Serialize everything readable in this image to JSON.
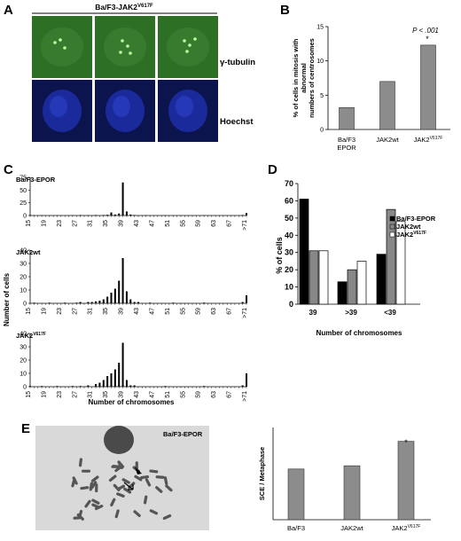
{
  "panels": {
    "A": {
      "letter": "A",
      "header_base": "Ba/F3-JAK2",
      "header_sup": "V617F",
      "row1_label": "γ-tubulin",
      "row2_label": "Hoechst",
      "colors": {
        "green_bg": "#2e6f26",
        "blue_bg": "#1a2a9a",
        "dot": "#b6ff9a"
      }
    },
    "B": {
      "letter": "B",
      "annotation_p": "P < .001",
      "annotation_star": "*",
      "cat1_line1": "Ba/F3",
      "cat1_line2": "EPOR",
      "cat2": "JAK2wt",
      "cat3_base": "JAK2",
      "cat3_sup": "V617F"
    },
    "C": {
      "letter": "C",
      "ylabel": "Number of cells",
      "xlabel": "Number of chromosomes",
      "sub1": "Ba/F3-EPOR",
      "sub2": "JAK2wt",
      "sub3_base": "JAK2",
      "sub3_sup": "V617F"
    },
    "D": {
      "letter": "D",
      "ylabel": "% of cells",
      "xlabel": "Number of chromosomes",
      "legend1": "Ba/F3-EPOR",
      "legend2": "JAK2wt",
      "legend3_base": "JAK2",
      "legend3_sup": "V617F"
    },
    "E": {
      "letter": "E",
      "micrograph_label": "Ba/F3-EPOR",
      "ylabel": "SCE / Metaphase",
      "annotation_star": "*",
      "cat1": "Ba/F3",
      "cat2": "JAK2wt",
      "cat3_base": "JAK2",
      "cat3_sup": "V617F"
    }
  },
  "chart_data": [
    {
      "panel": "B",
      "type": "bar",
      "ylabel": "% of cells in mitosis with abnormal numbers of centrosomes",
      "ylabel_lines": [
        "% of cells in mitosis with",
        "abnormal",
        "numbers of centrosomes"
      ],
      "categories": [
        "Ba/F3 EPOR",
        "JAK2wt",
        "JAK2V617F"
      ],
      "values": [
        3.2,
        7,
        12.3
      ],
      "ylim": [
        0,
        15
      ],
      "yticks": [
        0,
        5,
        10,
        15
      ],
      "color": "#8c8c8c"
    },
    {
      "panel": "C",
      "type": "bar",
      "xlim": [
        15,
        71
      ],
      "xticks": [
        "15",
        "19",
        "23",
        "27",
        "31",
        "35",
        "39",
        "43",
        "47",
        "51",
        "55",
        "59",
        "63",
        "67",
        ">71"
      ],
      "series": [
        {
          "name": "Ba/F3-EPOR",
          "ylim": [
            0,
            75
          ],
          "yticks": [
            0,
            25,
            50,
            75
          ],
          "points": [
            [
              15,
              1
            ],
            [
              16,
              0.5
            ],
            [
              18,
              0.5
            ],
            [
              22,
              0.5
            ],
            [
              26,
              0.5
            ],
            [
              28,
              1
            ],
            [
              30,
              0.5
            ],
            [
              32,
              1
            ],
            [
              34,
              1
            ],
            [
              35,
              1.5
            ],
            [
              36,
              6
            ],
            [
              37,
              2
            ],
            [
              38,
              4
            ],
            [
              39,
              65
            ],
            [
              40,
              8
            ],
            [
              41,
              2
            ],
            [
              42,
              1
            ],
            [
              45,
              0.5
            ],
            [
              50,
              0.5
            ],
            [
              60,
              0.5
            ],
            [
              70,
              1
            ],
            [
              71,
              5
            ]
          ]
        },
        {
          "name": "JAK2wt",
          "ylim": [
            0,
            40
          ],
          "yticks": [
            0,
            10,
            20,
            30,
            40
          ],
          "points": [
            [
              16,
              0.5
            ],
            [
              20,
              0.5
            ],
            [
              24,
              0.5
            ],
            [
              27,
              0.5
            ],
            [
              28,
              1
            ],
            [
              30,
              1
            ],
            [
              31,
              1
            ],
            [
              32,
              1.5
            ],
            [
              33,
              2
            ],
            [
              34,
              3
            ],
            [
              35,
              5
            ],
            [
              36,
              8
            ],
            [
              37,
              11
            ],
            [
              38,
              17
            ],
            [
              39,
              34
            ],
            [
              40,
              9
            ],
            [
              41,
              3
            ],
            [
              42,
              1
            ],
            [
              43,
              1
            ],
            [
              46,
              0.5
            ],
            [
              52,
              0.5
            ],
            [
              60,
              0.5
            ],
            [
              70,
              1
            ],
            [
              71,
              6
            ]
          ]
        },
        {
          "name": "JAK2V617F",
          "ylim": [
            0,
            40
          ],
          "yticks": [
            0,
            10,
            20,
            30,
            40
          ],
          "points": [
            [
              15,
              0.5
            ],
            [
              18,
              0.5
            ],
            [
              22,
              0.5
            ],
            [
              26,
              0.5
            ],
            [
              28,
              0.5
            ],
            [
              30,
              1
            ],
            [
              32,
              2
            ],
            [
              33,
              3
            ],
            [
              34,
              5
            ],
            [
              35,
              8
            ],
            [
              36,
              10
            ],
            [
              37,
              13
            ],
            [
              38,
              18
            ],
            [
              39,
              33
            ],
            [
              40,
              5
            ],
            [
              41,
              1
            ],
            [
              42,
              1
            ],
            [
              50,
              0.5
            ],
            [
              60,
              0.5
            ],
            [
              70,
              1
            ],
            [
              71,
              10
            ]
          ]
        }
      ]
    },
    {
      "panel": "D",
      "type": "bar",
      "categories": [
        "39",
        ">39",
        "<39"
      ],
      "series": [
        {
          "name": "Ba/F3-EPOR",
          "values": [
            61,
            13,
            29
          ],
          "color": "#000000"
        },
        {
          "name": "JAK2wt",
          "values": [
            31,
            20,
            55
          ],
          "color": "#888888"
        },
        {
          "name": "JAK2V617F",
          "values": [
            31,
            25,
            48
          ],
          "color": "#ffffff"
        }
      ],
      "ylim": [
        0,
        70
      ],
      "yticks": [
        0,
        10,
        20,
        30,
        40,
        50,
        60,
        70
      ]
    },
    {
      "panel": "E",
      "type": "bar",
      "categories": [
        "Ba/F3",
        "JAK2wt",
        "JAK2V617F"
      ],
      "values": [
        11,
        11.7,
        17
      ],
      "ylim": [
        0,
        20
      ],
      "color": "#8c8c8c"
    }
  ]
}
